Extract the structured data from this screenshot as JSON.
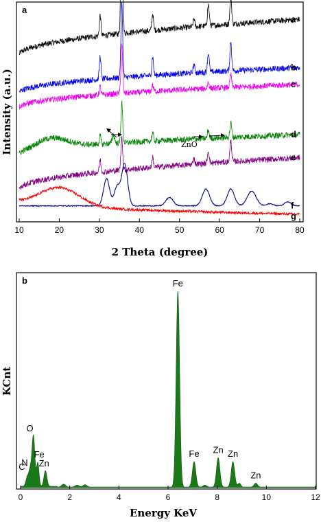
{
  "chart_data": [
    {
      "panel": "a",
      "type": "line",
      "xlabel": "2 Theta (degree)",
      "ylabel": "Intensity (a.u.)",
      "xlim": [
        10,
        80
      ],
      "xticks": [
        10,
        20,
        30,
        40,
        50,
        60,
        70,
        80
      ],
      "annotation": "ZnO",
      "colors": {
        "a": "#000000",
        "b": "#0000ee",
        "c": "#ee00ee",
        "d": "#008000",
        "e": "#800080",
        "f": "#00008b",
        "g": "#ff0000"
      },
      "series": [
        {
          "name": "a",
          "type": "noisy",
          "start": 0.78,
          "end": 0.95,
          "peaks": [
            [
              30.2,
              0.1,
              0.2
            ],
            [
              35.6,
              0.7,
              0.22
            ],
            [
              43.3,
              0.08,
              0.2
            ],
            [
              53.6,
              0.04,
              0.2
            ],
            [
              57.2,
              0.1,
              0.22
            ],
            [
              62.8,
              0.13,
              0.22
            ]
          ]
        },
        {
          "name": "b",
          "type": "noisy",
          "start": 0.6,
          "end": 0.72,
          "peaks": [
            [
              30.2,
              0.11,
              0.2
            ],
            [
              35.6,
              0.36,
              0.22
            ],
            [
              43.3,
              0.09,
              0.2
            ],
            [
              53.6,
              0.04,
              0.2
            ],
            [
              57.2,
              0.09,
              0.22
            ],
            [
              62.8,
              0.14,
              0.22
            ]
          ]
        },
        {
          "name": "c",
          "type": "noisy",
          "start": 0.53,
          "end": 0.64,
          "peaks": [
            [
              30.2,
              0.04,
              0.2
            ],
            [
              35.6,
              0.23,
              0.22
            ],
            [
              43.3,
              0.03,
              0.2
            ],
            [
              57.2,
              0.03,
              0.22
            ],
            [
              62.8,
              0.06,
              0.22
            ]
          ]
        },
        {
          "name": "d",
          "type": "noisy",
          "start": 0.3,
          "end": 0.4,
          "hump": [
            18,
            0.05,
            4
          ],
          "peaks": [
            [
              30.2,
              0.04,
              0.2
            ],
            [
              33.5,
              0.04,
              0.3
            ],
            [
              35.6,
              0.19,
              0.22
            ],
            [
              43.3,
              0.04,
              0.2
            ],
            [
              57.2,
              0.04,
              0.22
            ],
            [
              62.8,
              0.07,
              0.22
            ]
          ]
        },
        {
          "name": "e",
          "type": "noisy",
          "start": 0.14,
          "end": 0.29,
          "peaks": [
            [
              30.2,
              0.06,
              0.2
            ],
            [
              35.6,
              0.16,
              0.22
            ],
            [
              43.3,
              0.05,
              0.2
            ],
            [
              53.6,
              0.03,
              0.2
            ],
            [
              57.2,
              0.06,
              0.22
            ],
            [
              62.8,
              0.1,
              0.22
            ]
          ]
        },
        {
          "name": "f",
          "type": "broad",
          "start": 0.06,
          "end": 0.06,
          "peaks": [
            [
              31.8,
              0.13,
              0.75
            ],
            [
              34.4,
              0.09,
              0.7
            ],
            [
              36.3,
              0.2,
              0.75
            ],
            [
              47.5,
              0.04,
              0.9
            ],
            [
              56.6,
              0.08,
              0.9
            ],
            [
              62.8,
              0.08,
              0.9
            ],
            [
              68.0,
              0.07,
              1.1
            ],
            [
              72.6,
              0.01,
              0.8
            ],
            [
              77.0,
              0.02,
              0.8
            ]
          ]
        },
        {
          "name": "g",
          "type": "amorphous",
          "start": 0.08,
          "end": 0.02,
          "hump": [
            20,
            0.09,
            5
          ]
        }
      ]
    },
    {
      "panel": "b",
      "type": "area",
      "xlabel": "Energy KeV",
      "ylabel": "KCnt",
      "xlim": [
        0,
        12
      ],
      "ylim": [
        0,
        100
      ],
      "xticks": [
        0,
        2,
        4,
        6,
        8,
        10,
        12
      ],
      "fill_color": "#1a7a1a",
      "peaks": [
        {
          "label": "C",
          "x": 0.28,
          "y": 5,
          "w": 0.06
        },
        {
          "label": "N",
          "x": 0.39,
          "y": 7,
          "w": 0.05
        },
        {
          "label": "O",
          "x": 0.52,
          "y": 26,
          "w": 0.06
        },
        {
          "label": "Fe",
          "x": 0.7,
          "y": 12,
          "w": 0.05
        },
        {
          "label": "Zn",
          "x": 1.01,
          "y": 8,
          "w": 0.06
        },
        {
          "label": "",
          "x": 1.75,
          "y": 1.5,
          "w": 0.08
        },
        {
          "label": "",
          "x": 2.3,
          "y": 1.0,
          "w": 0.08
        },
        {
          "label": "",
          "x": 2.62,
          "y": 1.2,
          "w": 0.08
        },
        {
          "label": "Fe",
          "x": 6.4,
          "y": 100,
          "w": 0.07
        },
        {
          "label": "Fe",
          "x": 7.06,
          "y": 13,
          "w": 0.07
        },
        {
          "label": "",
          "x": 7.5,
          "y": 1.0,
          "w": 0.07
        },
        {
          "label": "Zn",
          "x": 8.04,
          "y": 15,
          "w": 0.07
        },
        {
          "label": "Zn",
          "x": 8.64,
          "y": 13,
          "w": 0.07
        },
        {
          "label": "",
          "x": 8.9,
          "y": 2.0,
          "w": 0.06
        },
        {
          "label": "Zn",
          "x": 9.57,
          "y": 2.0,
          "w": 0.07
        }
      ]
    }
  ]
}
